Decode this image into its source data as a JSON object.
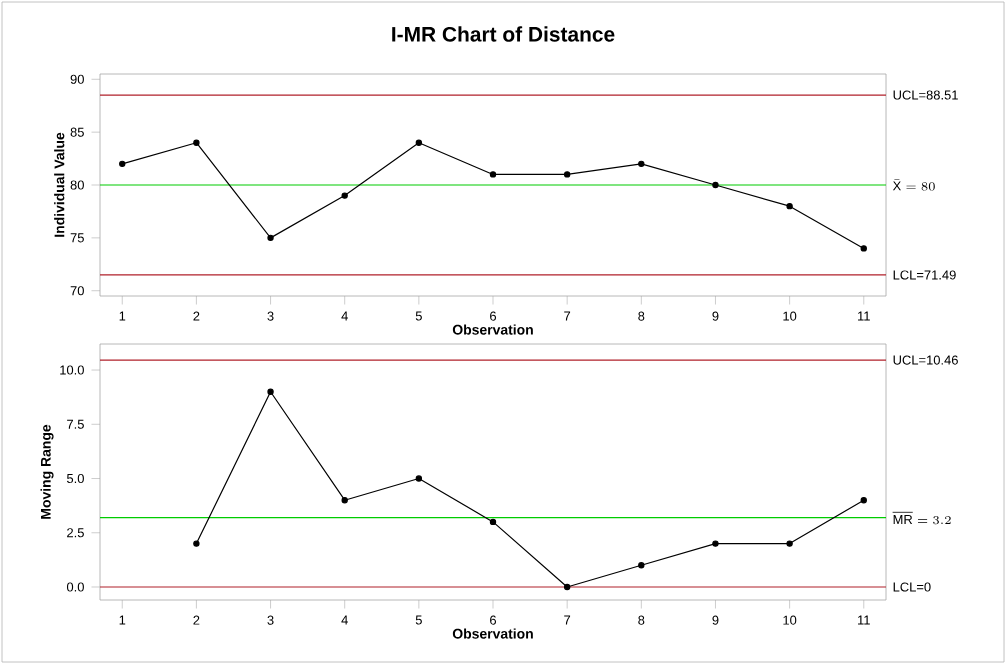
{
  "chart_data": [
    {
      "type": "line",
      "title": "I-MR Chart of Distance",
      "xlabel": "Observation",
      "ylabel": "Individual Value",
      "marker": "circle",
      "x": [
        1,
        2,
        3,
        4,
        5,
        6,
        7,
        8,
        9,
        10,
        11
      ],
      "series": [
        {
          "color": "#000000",
          "values": [
            82,
            84,
            75,
            79,
            84,
            81,
            81,
            82,
            80,
            78,
            74
          ]
        }
      ],
      "xlim": [
        0.7,
        11.3
      ],
      "xticks": [
        1,
        2,
        3,
        4,
        5,
        6,
        7,
        8,
        9,
        10,
        11
      ],
      "ylim": [
        69.5,
        90.5
      ],
      "yticks": [
        70,
        75,
        80,
        85,
        90
      ],
      "ref_lines": [
        {
          "axis": "y",
          "value": 88.51,
          "label": "UCL=88.51",
          "color": "#b0202a"
        },
        {
          "axis": "y",
          "value": 80,
          "label": "\\bar{\\mathrm{X}}=80",
          "color": "#00cc00"
        },
        {
          "axis": "y",
          "value": 71.49,
          "label": "LCL=71.49",
          "color": "#b0202a"
        }
      ]
    },
    {
      "type": "line",
      "xlabel": "Observation",
      "ylabel": "Moving Range",
      "marker": "circle",
      "series": [
        {
          "color": "#000000",
          "x": [
            2,
            3,
            4,
            5,
            6,
            7,
            8,
            9,
            10,
            11
          ],
          "values": [
            2,
            9,
            4,
            5,
            3,
            0,
            1,
            2,
            2,
            4
          ]
        }
      ],
      "xlim": [
        0.7,
        11.3
      ],
      "xticks": [
        1,
        2,
        3,
        4,
        5,
        6,
        7,
        8,
        9,
        10,
        11
      ],
      "ylim": [
        -0.6,
        11.2
      ],
      "yticks": [
        {
          "value": 0,
          "label": "0.0"
        },
        {
          "value": 2.5,
          "label": "2.5"
        },
        {
          "value": 5,
          "label": "5.0"
        },
        {
          "value": 7.5,
          "label": "7.5"
        },
        {
          "value": 10,
          "label": "10.0"
        }
      ],
      "ref_lines": [
        {
          "axis": "y",
          "value": 10.46,
          "label": "UCL=10.46",
          "color": "#b0202a"
        },
        {
          "axis": "y",
          "value": 3.2,
          "label": "\\overline{\\mathrm{MR}}=3.2",
          "color": "#00cc00"
        },
        {
          "axis": "y",
          "value": 0,
          "label": "LCL=0",
          "color": "#b0202a"
        }
      ]
    }
  ]
}
